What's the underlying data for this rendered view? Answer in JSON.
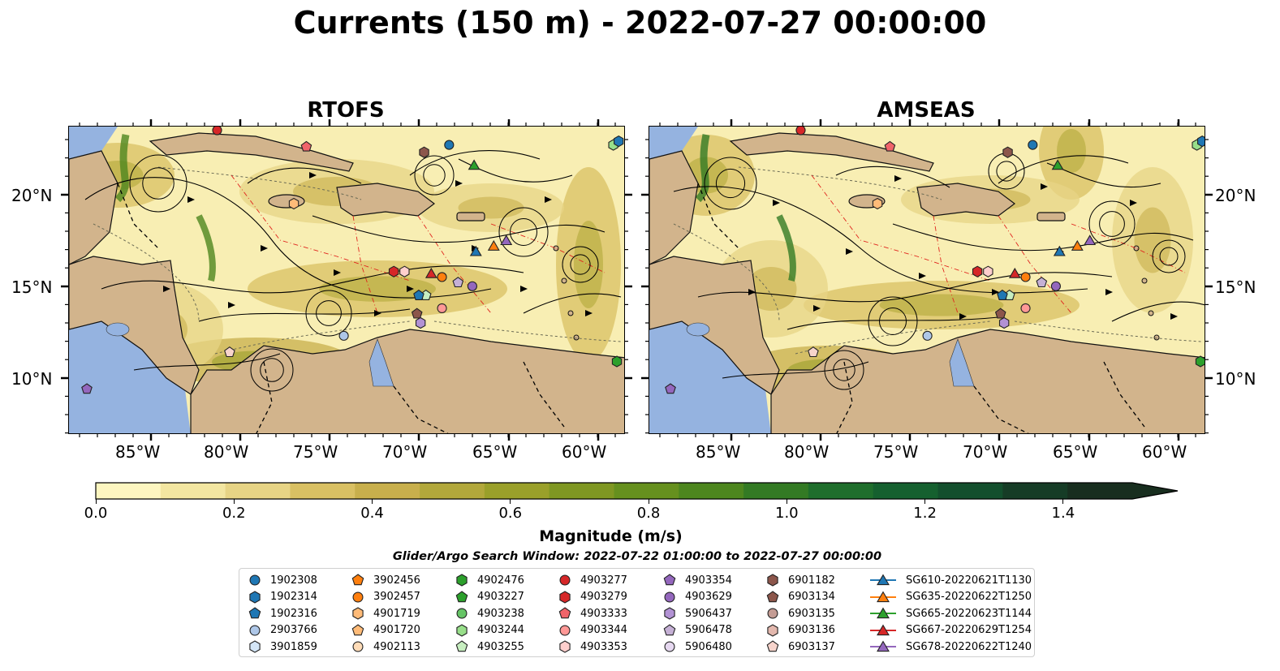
{
  "title": "Currents (150 m) - 2022-07-27 00:00:00",
  "panels": [
    {
      "id": "rtofs",
      "title": "RTOFS"
    },
    {
      "id": "amseas",
      "title": "AMSEAS"
    }
  ],
  "axes": {
    "lon_ticks": [
      "85°W",
      "80°W",
      "75°W",
      "70°W",
      "65°W",
      "60°W"
    ],
    "lat_ticks": [
      "20°N",
      "15°N",
      "10°N"
    ]
  },
  "colorbar": {
    "label": "Magnitude (m/s)",
    "ticks": [
      "0.0",
      "0.2",
      "0.4",
      "0.6",
      "0.8",
      "1.0",
      "1.2",
      "1.4"
    ],
    "range": [
      0,
      1.5
    ],
    "extend": "max",
    "colors": [
      "#fdf6c0",
      "#f3e6a1",
      "#e7d485",
      "#d9c063",
      "#c8af4c",
      "#b2a83b",
      "#9aa02a",
      "#7f9722",
      "#66901e",
      "#4d861e",
      "#337a24",
      "#1f6e2c",
      "#15602f",
      "#134f2d",
      "#163c26",
      "#182e1f"
    ]
  },
  "window_text": "Glider/Argo Search Window: 2022-07-22 01:00:00 to 2022-07-27 00:00:00",
  "map_colors": {
    "land": "#d2b48c",
    "ocean": "#95b3e0",
    "current_low": "#f8eeb3"
  },
  "legend": {
    "columns": [
      [
        {
          "label": "1902308",
          "marker": "circle",
          "color": "#1f77b4"
        },
        {
          "label": "1902314",
          "marker": "hexagon",
          "color": "#1f77b4"
        },
        {
          "label": "1902316",
          "marker": "pentagon",
          "color": "#1f77b4"
        },
        {
          "label": "2903766",
          "marker": "circle",
          "color": "#aec7e8"
        },
        {
          "label": "3901859",
          "marker": "hexagon",
          "color": "#d4e6f7"
        }
      ],
      [
        {
          "label": "3902456",
          "marker": "pentagon",
          "color": "#ff7f0e"
        },
        {
          "label": "3902457",
          "marker": "circle",
          "color": "#ff7f0e"
        },
        {
          "label": "4901719",
          "marker": "hexagon",
          "color": "#ffbb78"
        },
        {
          "label": "4901720",
          "marker": "pentagon",
          "color": "#ffbb78"
        },
        {
          "label": "4902113",
          "marker": "circle",
          "color": "#ffdcb8"
        }
      ],
      [
        {
          "label": "4902476",
          "marker": "hexagon",
          "color": "#2ca02c"
        },
        {
          "label": "4903227",
          "marker": "pentagon",
          "color": "#2ca02c"
        },
        {
          "label": "4903238",
          "marker": "circle",
          "color": "#66c466"
        },
        {
          "label": "4903244",
          "marker": "hexagon",
          "color": "#98df8a"
        },
        {
          "label": "4903255",
          "marker": "pentagon",
          "color": "#c7eec0"
        }
      ],
      [
        {
          "label": "4903277",
          "marker": "circle",
          "color": "#d62728"
        },
        {
          "label": "4903279",
          "marker": "hexagon",
          "color": "#d62728"
        },
        {
          "label": "4903333",
          "marker": "pentagon",
          "color": "#f0646a"
        },
        {
          "label": "4903344",
          "marker": "circle",
          "color": "#ff9896"
        },
        {
          "label": "4903353",
          "marker": "hexagon",
          "color": "#ffcfcd"
        }
      ],
      [
        {
          "label": "4903354",
          "marker": "pentagon",
          "color": "#9467bd"
        },
        {
          "label": "4903629",
          "marker": "circle",
          "color": "#9467bd"
        },
        {
          "label": "5906437",
          "marker": "hexagon",
          "color": "#b292d4"
        },
        {
          "label": "5906478",
          "marker": "pentagon",
          "color": "#c5b0d5"
        },
        {
          "label": "5906480",
          "marker": "circle",
          "color": "#e6d8f0"
        }
      ],
      [
        {
          "label": "6901182",
          "marker": "hexagon",
          "color": "#8c564b"
        },
        {
          "label": "6903134",
          "marker": "pentagon",
          "color": "#8c564b"
        },
        {
          "label": "6903135",
          "marker": "circle",
          "color": "#c49c94"
        },
        {
          "label": "6903136",
          "marker": "hexagon",
          "color": "#e3b8ae"
        },
        {
          "label": "6903137",
          "marker": "pentagon",
          "color": "#f7d4cc"
        }
      ],
      [
        {
          "label": "SG610-20220621T1130",
          "marker": "triangle",
          "color": "#1f77b4"
        },
        {
          "label": "SG635-20220622T1250",
          "marker": "triangle",
          "color": "#ff7f0e"
        },
        {
          "label": "SG665-20220623T1144",
          "marker": "triangle",
          "color": "#2ca02c"
        },
        {
          "label": "SG667-20220629T1254",
          "marker": "triangle",
          "color": "#d62728"
        },
        {
          "label": "SG678-20220622T1240",
          "marker": "triangle",
          "color": "#9467bd"
        }
      ]
    ]
  },
  "map_markers": [
    {
      "label": "1902308",
      "lon": -68.2,
      "lat": 22.8
    },
    {
      "label": "4903277",
      "lon": -81.2,
      "lat": 23.6
    },
    {
      "label": "4903333",
      "lon": -76.2,
      "lat": 22.7
    },
    {
      "label": "4903244",
      "lon": -59.0,
      "lat": 22.8
    },
    {
      "label": "1902314",
      "lon": -58.7,
      "lat": 23.0
    },
    {
      "label": "6901182",
      "lon": -69.6,
      "lat": 22.4
    },
    {
      "label": "SG665-20220623T1144",
      "lon": -66.8,
      "lat": 21.7
    },
    {
      "label": "4901719",
      "lon": -76.9,
      "lat": 19.6
    },
    {
      "label": "SG610-20220621T1130",
      "lon": -66.7,
      "lat": 17.0
    },
    {
      "label": "SG635-20220622T1250",
      "lon": -65.7,
      "lat": 17.3
    },
    {
      "label": "SG678-20220622T1240",
      "lon": -65.0,
      "lat": 17.6
    },
    {
      "label": "4903353",
      "lon": -70.7,
      "lat": 15.9
    },
    {
      "label": "4903279",
      "lon": -71.3,
      "lat": 15.9
    },
    {
      "label": "SG667-20220629T1254",
      "lon": -69.2,
      "lat": 15.8
    },
    {
      "label": "3902457",
      "lon": -68.6,
      "lat": 15.6
    },
    {
      "label": "5906478",
      "lon": -67.7,
      "lat": 15.3
    },
    {
      "label": "4903629",
      "lon": -66.9,
      "lat": 15.1
    },
    {
      "label": "4903255",
      "lon": -69.5,
      "lat": 14.6
    },
    {
      "label": "1902316",
      "lon": -69.9,
      "lat": 14.6
    },
    {
      "label": "4903344",
      "lon": -68.6,
      "lat": 13.9
    },
    {
      "label": "6903134",
      "lon": -70.0,
      "lat": 13.6
    },
    {
      "label": "5906437",
      "lon": -69.8,
      "lat": 13.1
    },
    {
      "label": "2903766",
      "lon": -74.1,
      "lat": 12.4
    },
    {
      "label": "4902476",
      "lon": -58.8,
      "lat": 11.0
    },
    {
      "label": "6903137",
      "lon": -80.5,
      "lat": 11.5
    },
    {
      "label": "4903354",
      "lon": -88.5,
      "lat": 9.5
    }
  ]
}
